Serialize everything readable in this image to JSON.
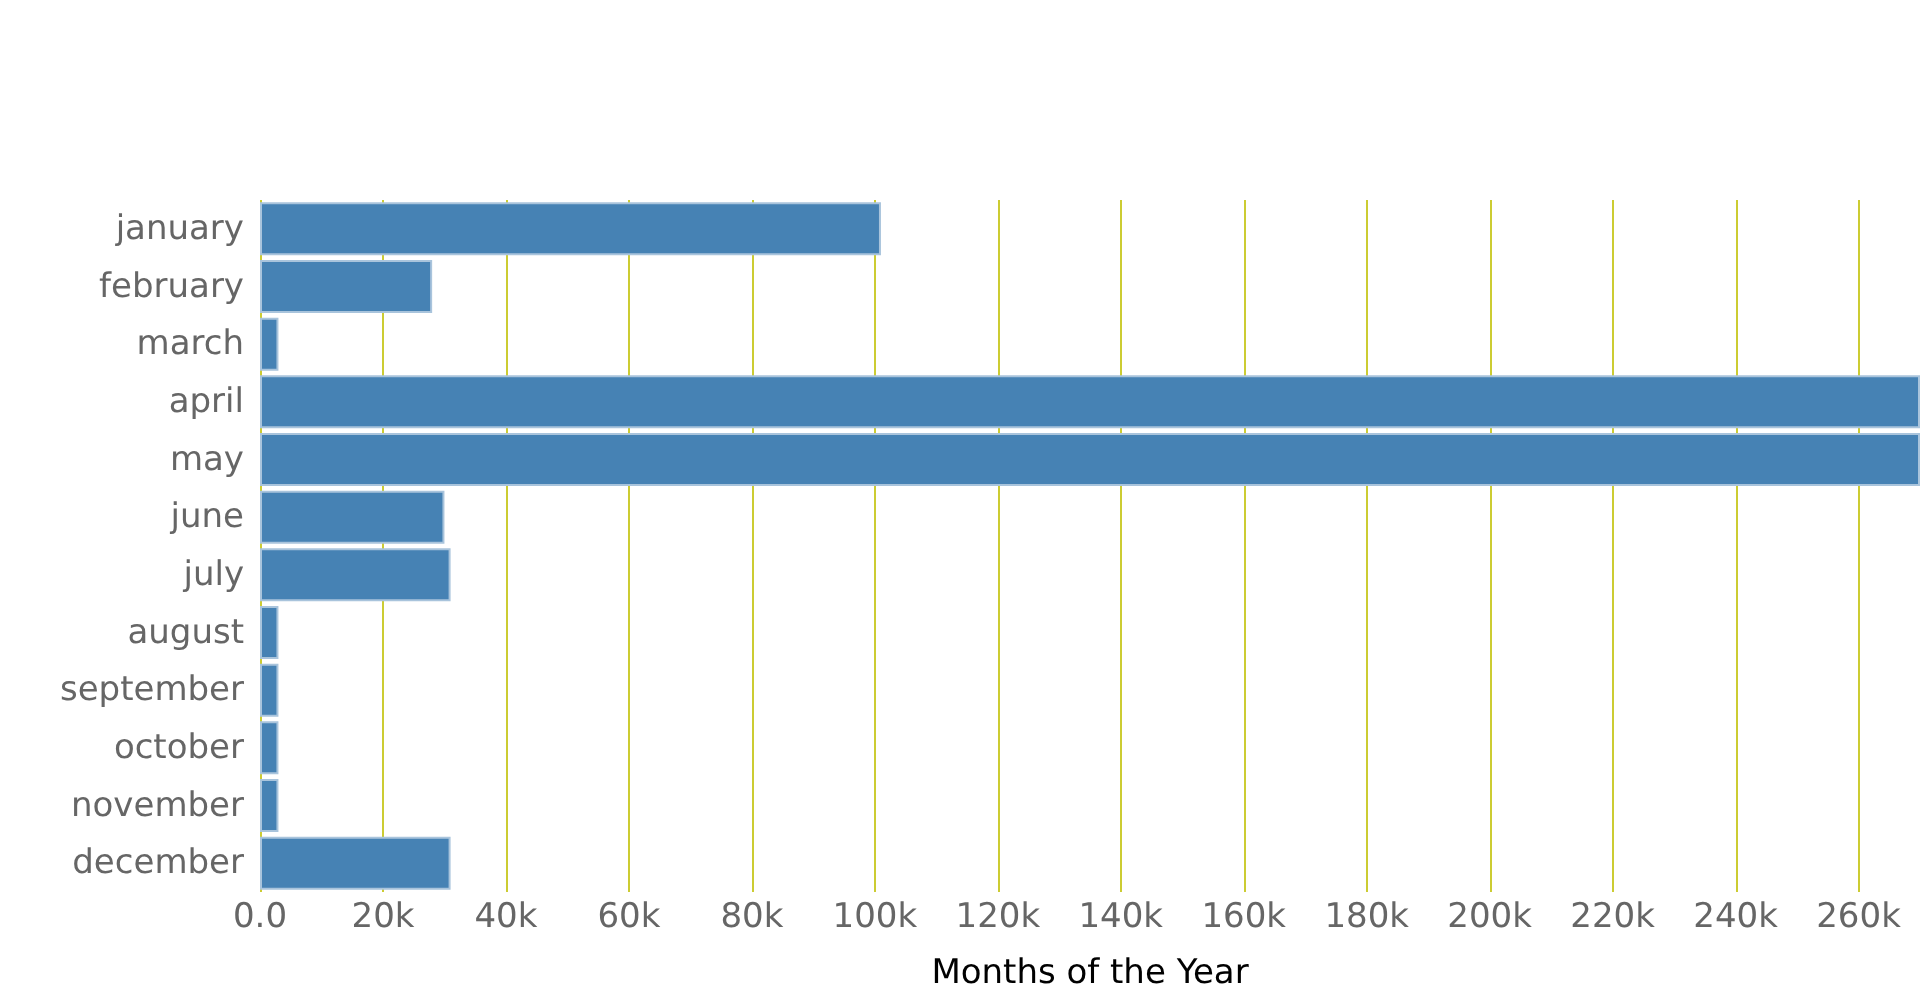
{
  "chart_data": {
    "type": "bar",
    "orientation": "horizontal",
    "xlabel": "Months of the Year",
    "categories": [
      "january",
      "february",
      "march",
      "april",
      "may",
      "june",
      "july",
      "august",
      "september",
      "october",
      "november",
      "december"
    ],
    "values": [
      101000,
      28000,
      3000,
      270000,
      270000,
      30000,
      31000,
      3000,
      3000,
      3000,
      3000,
      31000
    ],
    "color": "#4682b4",
    "xlim": [
      0,
      270000
    ],
    "xticks": [
      {
        "value": 0,
        "label": "0.0"
      },
      {
        "value": 20000,
        "label": "20k"
      },
      {
        "value": 40000,
        "label": "40k"
      },
      {
        "value": 60000,
        "label": "60k"
      },
      {
        "value": 80000,
        "label": "80k"
      },
      {
        "value": 100000,
        "label": "100k"
      },
      {
        "value": 120000,
        "label": "120k"
      },
      {
        "value": 140000,
        "label": "140k"
      },
      {
        "value": 160000,
        "label": "160k"
      },
      {
        "value": 180000,
        "label": "180k"
      },
      {
        "value": 200000,
        "label": "200k"
      },
      {
        "value": 220000,
        "label": "220k"
      },
      {
        "value": 240000,
        "label": "240k"
      },
      {
        "value": 260000,
        "label": "260k"
      }
    ],
    "grid": "x"
  }
}
